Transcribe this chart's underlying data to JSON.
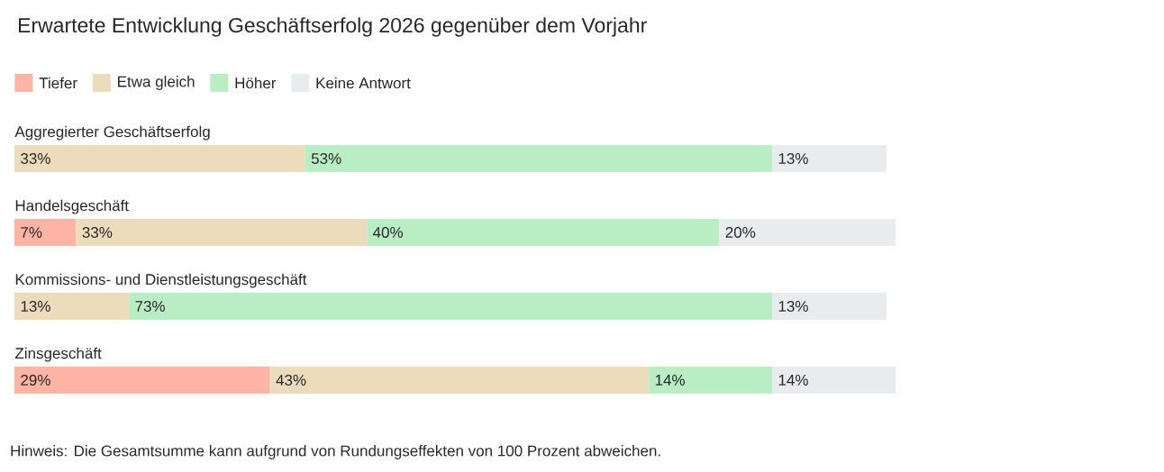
{
  "chart_data": {
    "type": "bar",
    "orientation": "horizontal",
    "stacked": true,
    "title": "Erwartete Entwicklung Geschäftserfolg 2026 gegenüber dem Vorjahr",
    "categories": [
      "Aggregierter Geschäftserfolg",
      "Handelsgeschäft",
      "Kommissions- und Dienstleistungsgeschäft",
      "Zinsgeschäft"
    ],
    "xlim": [
      0,
      100
    ],
    "legend": "top left",
    "series": [
      {
        "name": "Tiefer",
        "color": "#fdb4a4",
        "values": [
          null,
          7,
          null,
          29
        ],
        "value_labels": [
          null,
          "7%",
          null,
          "29%"
        ]
      },
      {
        "name": "Etwa gleich",
        "color": "#ecdcbb",
        "values": [
          33,
          33,
          13,
          43
        ],
        "value_labels": [
          "33%",
          "33%",
          "13%",
          "43%"
        ]
      },
      {
        "name": "Höher",
        "color": "#b9eec4",
        "values": [
          53,
          40,
          73,
          14
        ],
        "value_labels": [
          "53%",
          "40%",
          "73%",
          "14%"
        ]
      },
      {
        "name": "Keine Antwort",
        "color": "#e9ecef",
        "values": [
          13,
          20,
          13,
          14
        ],
        "value_labels": [
          "13%",
          "20%",
          "13%",
          "14%"
        ]
      }
    ],
    "annotations": [
      "Hinweis: Die Gesamtsumme kann aufgrund von Rundungseffekten von 100 Prozent abweichen."
    ]
  }
}
